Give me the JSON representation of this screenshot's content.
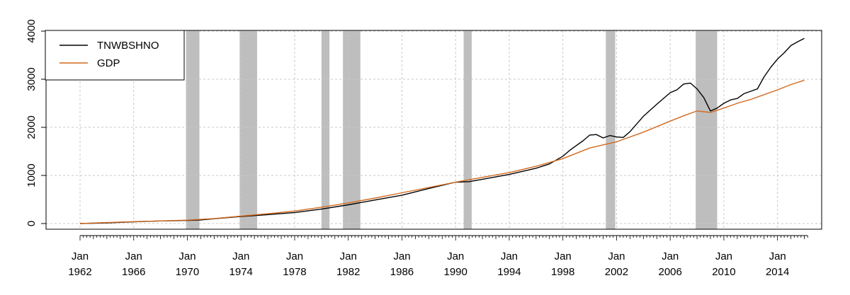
{
  "chart_data": {
    "type": "line",
    "title": "",
    "xlabel": "",
    "ylabel": "",
    "xlim": [
      1962.0,
      2016.5
    ],
    "ylim": [
      0,
      4000
    ],
    "grid": true,
    "legend": {
      "placement": "top-left",
      "entries": [
        "TNWBSHNO",
        "GDP"
      ]
    },
    "x_tick_labels": [
      [
        "Jan",
        "1962"
      ],
      [
        "Jan",
        "1966"
      ],
      [
        "Jan",
        "1970"
      ],
      [
        "Jan",
        "1974"
      ],
      [
        "Jan",
        "1978"
      ],
      [
        "Jan",
        "1982"
      ],
      [
        "Jan",
        "1986"
      ],
      [
        "Jan",
        "1990"
      ],
      [
        "Jan",
        "1994"
      ],
      [
        "Jan",
        "1998"
      ],
      [
        "Jan",
        "2002"
      ],
      [
        "Jan",
        "2006"
      ],
      [
        "Jan",
        "2010"
      ],
      [
        "Jan",
        "2014"
      ]
    ],
    "x_tick_years": [
      1962,
      1966,
      1970,
      1974,
      1978,
      1982,
      1986,
      1990,
      1994,
      1998,
      2002,
      2006,
      2010,
      2014
    ],
    "y_tick_labels": [
      "0",
      "1000",
      "2000",
      "3000",
      "4000"
    ],
    "y_ticks": [
      0,
      1000,
      2000,
      3000,
      4000
    ],
    "recessions": [
      [
        1969.9,
        1970.9
      ],
      [
        1973.9,
        1975.2
      ],
      [
        1980.0,
        1980.6
      ],
      [
        1981.6,
        1982.9
      ],
      [
        1990.6,
        1991.2
      ],
      [
        2001.2,
        2001.9
      ],
      [
        2007.9,
        2009.5
      ]
    ],
    "series": [
      {
        "name": "TNWBSHNO",
        "color": "#000000",
        "x": [
          1962,
          1964,
          1966,
          1968,
          1970,
          1971,
          1972,
          1974,
          1976,
          1978,
          1980,
          1982,
          1984,
          1986,
          1988,
          1990,
          1991,
          1992,
          1994,
          1996,
          1997,
          1998,
          1998.5,
          1999,
          1999.5,
          2000,
          2000.5,
          2001,
          2001.5,
          2002,
          2002.5,
          2003,
          2004,
          2005,
          2006,
          2006.5,
          2007,
          2007.5,
          2008,
          2008.5,
          2009,
          2009.5,
          2010,
          2010.5,
          2011,
          2011.5,
          2012,
          2012.5,
          2013,
          2013.5,
          2014,
          2014.5,
          2015,
          2015.5,
          2016
        ],
        "values": [
          0,
          15,
          35,
          55,
          65,
          75,
          100,
          145,
          185,
          230,
          300,
          390,
          490,
          590,
          730,
          860,
          870,
          920,
          1020,
          1150,
          1240,
          1400,
          1520,
          1620,
          1720,
          1840,
          1850,
          1780,
          1830,
          1800,
          1790,
          1910,
          2230,
          2480,
          2720,
          2780,
          2900,
          2920,
          2800,
          2620,
          2340,
          2400,
          2500,
          2570,
          2600,
          2700,
          2750,
          2800,
          3050,
          3250,
          3420,
          3550,
          3700,
          3780,
          3850
        ]
      },
      {
        "name": "GDP",
        "color": "#D2691E",
        "x": [
          1962,
          1964,
          1966,
          1968,
          1970,
          1972,
          1974,
          1976,
          1978,
          1980,
          1982,
          1984,
          1986,
          1988,
          1990,
          1992,
          1994,
          1996,
          1998,
          2000,
          2002,
          2004,
          2006,
          2007,
          2008,
          2009,
          2010,
          2011,
          2012,
          2013,
          2014,
          2015,
          2016
        ],
        "values": [
          0,
          20,
          40,
          55,
          70,
          105,
          155,
          205,
          260,
          340,
          430,
          530,
          640,
          750,
          860,
          960,
          1060,
          1190,
          1350,
          1570,
          1700,
          1900,
          2130,
          2240,
          2340,
          2310,
          2400,
          2500,
          2580,
          2680,
          2780,
          2890,
          2980
        ]
      }
    ]
  }
}
